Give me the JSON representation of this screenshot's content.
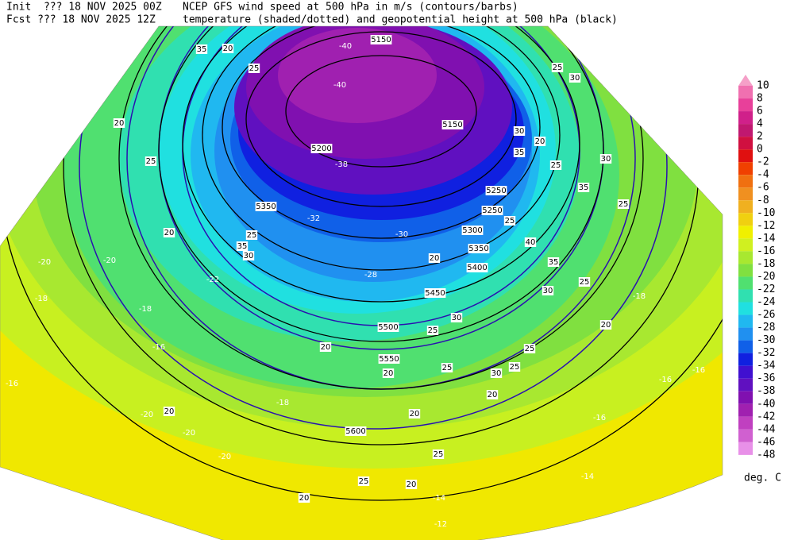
{
  "header": {
    "init": "Init  ??? 18 NOV 2025 00Z",
    "fcst": "Fcst ??? 18 NOV 2025 12Z",
    "title_line1": "NCEP GFS wind speed at 500 hPa in m/s (contours/barbs)",
    "title_line2": "temperature (shaded/dotted) and geopotential height at 500 hPa (black)"
  },
  "colorbar": {
    "levels": [
      10,
      8,
      6,
      4,
      2,
      0,
      -2,
      -4,
      -6,
      -8,
      -10,
      -12,
      -14,
      -16,
      -18,
      -20,
      -22,
      -24,
      -26,
      -28,
      -30,
      -32,
      -34,
      -36,
      -38,
      -40,
      -42,
      -44,
      -46,
      -48
    ],
    "arrow_color": "#f5a0c8",
    "colors": [
      "#f070b0",
      "#e8409a",
      "#d0208a",
      "#c01870",
      "#d01040",
      "#e01010",
      "#f04000",
      "#f07010",
      "#f09020",
      "#f0b020",
      "#f0d010",
      "#f0f000",
      "#d0f020",
      "#a8e830",
      "#80e040",
      "#50e070",
      "#30e0b0",
      "#20e0e0",
      "#20b8f0",
      "#2090f0",
      "#1060e8",
      "#1020e0",
      "#4010d0",
      "#6010c0",
      "#8010b0",
      "#a020b0",
      "#c040c0",
      "#d060d0",
      "#e890e8"
    ],
    "unit": "deg. C"
  },
  "height_labels": [
    "5150",
    "5150",
    "5200",
    "5250",
    "5350",
    "5250",
    "5300",
    "5350",
    "5400",
    "5450",
    "5500",
    "5550",
    "5600"
  ],
  "wind_labels": [
    "35",
    "20",
    "25",
    "20",
    "25",
    "20",
    "25",
    "35",
    "30",
    "20",
    "25",
    "30",
    "20",
    "25",
    "40",
    "35",
    "25",
    "30",
    "20",
    "25",
    "25",
    "30",
    "20",
    "25",
    "20",
    "20",
    "25",
    "25",
    "20",
    "20",
    "20",
    "30",
    "35",
    "20",
    "25",
    "30",
    "35",
    "25",
    "25",
    "30"
  ],
  "temperature_labels": [
    "-40",
    "-40",
    "-38",
    "-32",
    "-30",
    "-28",
    "-20",
    "-20",
    "-18",
    "-18",
    "-16",
    "-16",
    "-18",
    "-20",
    "-20",
    "-20",
    "-18",
    "-16",
    "-16",
    "-16",
    "-14",
    "-14",
    "-12",
    "-22"
  ]
}
